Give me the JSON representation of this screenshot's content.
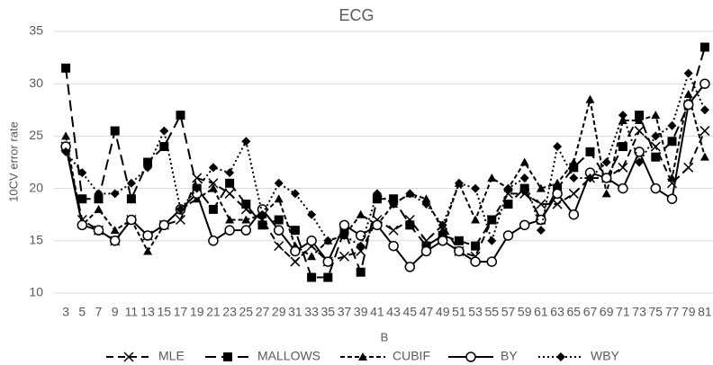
{
  "chart_data": {
    "type": "line",
    "title": "ECG",
    "x_label": "B",
    "y_label": "10CV error rate",
    "categories": [
      3,
      5,
      7,
      9,
      11,
      13,
      15,
      17,
      19,
      21,
      23,
      25,
      27,
      29,
      31,
      33,
      35,
      37,
      39,
      41,
      43,
      45,
      47,
      49,
      51,
      53,
      55,
      57,
      59,
      61,
      63,
      65,
      67,
      69,
      71,
      73,
      75,
      77,
      79,
      81
    ],
    "ylim": [
      10,
      35
    ],
    "yticks": [
      10,
      15,
      20,
      25,
      30,
      35
    ],
    "grid": true,
    "legend": "bottom",
    "series": [
      {
        "name": "MLE",
        "color": "#000000",
        "dash": "8,5",
        "marker": "x",
        "values": [
          24,
          17,
          16,
          15,
          17,
          15.5,
          16.5,
          17,
          21,
          20.5,
          19.5,
          18,
          17,
          14.5,
          13,
          14.5,
          13,
          13.5,
          14,
          17,
          16,
          17,
          15,
          16.5,
          14,
          13.5,
          17,
          19.5,
          19.5,
          18.5,
          18.5,
          19.5,
          21,
          21,
          22,
          25.5,
          24,
          20.5,
          22,
          25.5
        ]
      },
      {
        "name": "MALLOWS",
        "color": "#000000",
        "dash": "12,6",
        "marker": "square",
        "values": [
          31.5,
          19,
          19,
          25.5,
          19,
          22.5,
          24,
          27,
          20,
          18,
          20.5,
          18.5,
          16.5,
          17,
          16,
          11.5,
          11.5,
          16,
          12,
          19,
          19,
          16.5,
          14.5,
          15.5,
          15,
          14.5,
          17,
          18.5,
          20,
          17,
          20,
          22,
          23.5,
          21,
          24,
          27,
          23,
          24.5,
          28,
          33.5
        ]
      },
      {
        "name": "CUBIF",
        "color": "#000000",
        "dash": "5,3",
        "marker": "triangle",
        "values": [
          25,
          16.5,
          18,
          16,
          17,
          14,
          16.5,
          18,
          19,
          20,
          17,
          17,
          17.5,
          19,
          14.5,
          13.5,
          15,
          15.5,
          17.5,
          16.5,
          18.5,
          19.5,
          19,
          16,
          20.5,
          17,
          21,
          20,
          22.5,
          20,
          20.5,
          22.5,
          28.5,
          19.5,
          26.5,
          26.5,
          27,
          21,
          29,
          23
        ]
      },
      {
        "name": "BY",
        "color": "#000000",
        "dash": "none",
        "marker": "circle",
        "values": [
          24,
          16.5,
          16,
          15,
          17,
          15.5,
          16.5,
          18,
          19.5,
          15,
          16,
          16,
          18,
          16,
          14,
          15,
          13,
          16.5,
          15.5,
          16.5,
          14.5,
          12.5,
          14,
          15,
          14,
          13,
          13,
          15.5,
          16.5,
          17,
          19.5,
          17.5,
          21.5,
          21,
          20,
          23.5,
          20,
          19,
          28,
          30
        ]
      },
      {
        "name": "WBY",
        "color": "#000000",
        "dash": "2,3",
        "marker": "diamond",
        "values": [
          23.5,
          21.5,
          19.5,
          19.5,
          20.5,
          22,
          25.5,
          18,
          20,
          22,
          21.5,
          24.5,
          17.5,
          20.5,
          19.5,
          17.5,
          15,
          15.5,
          14.5,
          19.5,
          18.5,
          19.5,
          18.5,
          16.5,
          20.5,
          20,
          15,
          20,
          21,
          16,
          24,
          21,
          21,
          22.5,
          27,
          22.5,
          25,
          26,
          31,
          27.5
        ]
      }
    ]
  }
}
